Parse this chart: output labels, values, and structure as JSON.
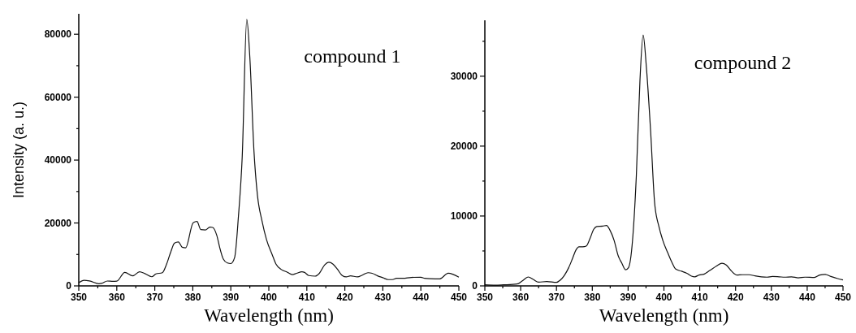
{
  "chart_data": [
    {
      "type": "line",
      "xlabel": "Wavelength (nm)",
      "ylabel": "Intensity (a. u.)",
      "annotations": [
        "compound 1"
      ],
      "xlim": [
        350,
        450
      ],
      "ylim": [
        0,
        86500
      ],
      "xticks": [
        350,
        {
          "value": 355,
          "label": null
        },
        360,
        {
          "value": 365,
          "label": null
        },
        370,
        {
          "value": 375,
          "label": null
        },
        380,
        {
          "value": 385,
          "label": null
        },
        390,
        {
          "value": 395,
          "label": null
        },
        400,
        {
          "value": 405,
          "label": null
        },
        410,
        {
          "value": 415,
          "label": null
        },
        420,
        {
          "value": 425,
          "label": null
        },
        430,
        {
          "value": 435,
          "label": null
        },
        440,
        {
          "value": 445,
          "label": null
        },
        450
      ],
      "yticks": [
        0,
        {
          "value": 10000,
          "label": null
        },
        20000,
        {
          "value": 30000,
          "label": null
        },
        40000,
        {
          "value": 50000,
          "label": null
        },
        60000,
        {
          "value": 70000,
          "label": null
        },
        80000
      ],
      "series": [
        {
          "color": "#111111",
          "x": [
            350,
            351.4,
            352.8,
            355.3,
            356,
            357.5,
            359,
            360,
            362.1,
            364.2,
            366,
            367.4,
            369.2,
            370.3,
            372,
            373.1,
            374.2,
            375.2,
            376.2,
            377.2,
            378.1,
            380.1,
            381.1,
            382.1,
            383.3,
            384.5,
            385.2,
            386.3,
            387.1,
            388,
            389.1,
            390,
            391,
            392,
            393,
            394.2,
            395,
            396.1,
            397,
            398.2,
            399.4,
            400.9,
            401.9,
            403.3,
            404.8,
            406.2,
            407.3,
            408.7,
            409.4,
            410.5,
            412.2,
            413.3,
            414.7,
            415.8,
            416.9,
            418,
            419.3,
            420.4,
            421.5,
            423.3,
            424.7,
            426.1,
            427.2,
            428.6,
            430,
            431.4,
            432.5,
            433.6,
            435.3,
            437.5,
            440,
            441,
            442.5,
            445,
            447.2,
            450
          ],
          "values": [
            1000,
            1800,
            1600,
            700,
            800,
            1550,
            1450,
            1500,
            4300,
            3200,
            4500,
            3900,
            2900,
            3800,
            4200,
            6900,
            10800,
            13600,
            14000,
            12300,
            12100,
            20100,
            20500,
            17900,
            17800,
            18700,
            18600,
            16100,
            12100,
            8600,
            7300,
            7100,
            9000,
            22000,
            41000,
            84700,
            72800,
            42700,
            28900,
            20700,
            14700,
            9900,
            6900,
            5200,
            4400,
            3600,
            4000,
            4500,
            4300,
            3300,
            3100,
            4000,
            6700,
            7500,
            6900,
            5400,
            3300,
            2850,
            3200,
            2850,
            3500,
            4200,
            4000,
            3200,
            2600,
            2000,
            2000,
            2400,
            2400,
            2700,
            2750,
            2400,
            2300,
            2250,
            4060,
            2800
          ]
        }
      ]
    },
    {
      "type": "line",
      "xlabel": "Wavelength (nm)",
      "annotations": [
        "compound 2"
      ],
      "xlim": [
        350,
        450
      ],
      "ylim": [
        0,
        38000
      ],
      "xticks": [
        350,
        {
          "value": 355,
          "label": null
        },
        360,
        {
          "value": 365,
          "label": null
        },
        370,
        {
          "value": 375,
          "label": null
        },
        380,
        {
          "value": 385,
          "label": null
        },
        390,
        {
          "value": 395,
          "label": null
        },
        400,
        {
          "value": 405,
          "label": null
        },
        410,
        {
          "value": 415,
          "label": null
        },
        420,
        {
          "value": 425,
          "label": null
        },
        430,
        {
          "value": 435,
          "label": null
        },
        440,
        {
          "value": 445,
          "label": null
        },
        450
      ],
      "yticks": [
        0,
        {
          "value": 5000,
          "label": null
        },
        10000,
        {
          "value": 15000,
          "label": null
        },
        20000,
        {
          "value": 25000,
          "label": null
        },
        30000,
        {
          "value": 35000,
          "label": null
        }
      ],
      "series": [
        {
          "color": "#111111",
          "x": [
            350,
            352.9,
            355.2,
            359,
            360.5,
            362.1,
            363.5,
            365,
            367.3,
            370,
            371.1,
            372.2,
            373.4,
            374.5,
            375.4,
            376.3,
            377.3,
            378.3,
            379.3,
            380.4,
            381.3,
            382.9,
            384,
            384.9,
            386.1,
            387.2,
            388.3,
            389.3,
            390.1,
            391.2,
            392.3,
            393.3,
            394.2,
            395.1,
            396.3,
            397.4,
            398.6,
            399.7,
            401.1,
            402.2,
            403.3,
            404.9,
            406.4,
            407.7,
            408.6,
            409.8,
            411.3,
            412.8,
            414.7,
            416.2,
            417.4,
            418.9,
            420.4,
            421.9,
            423.8,
            425.3,
            427.2,
            428.8,
            430.3,
            432.2,
            433.7,
            435.6,
            437.5,
            439.4,
            442,
            443.5,
            445,
            446.6,
            448.5,
            450
          ],
          "values": [
            150,
            100,
            150,
            270,
            740,
            1280,
            930,
            540,
            620,
            500,
            850,
            1500,
            2600,
            3950,
            5100,
            5600,
            5600,
            5700,
            6700,
            8100,
            8500,
            8550,
            8650,
            8000,
            6500,
            4350,
            3200,
            2300,
            2600,
            6300,
            15800,
            29300,
            35900,
            31300,
            22000,
            11900,
            8500,
            6500,
            4700,
            3400,
            2400,
            2100,
            1800,
            1400,
            1300,
            1550,
            1700,
            2200,
            2850,
            3250,
            3000,
            2100,
            1550,
            1600,
            1600,
            1450,
            1300,
            1250,
            1350,
            1300,
            1250,
            1300,
            1150,
            1250,
            1200,
            1550,
            1650,
            1350,
            1050,
            850
          ]
        }
      ]
    }
  ]
}
